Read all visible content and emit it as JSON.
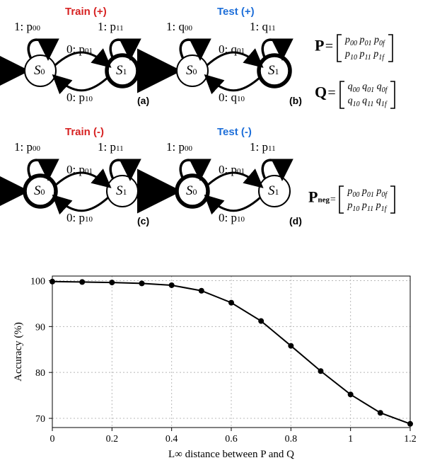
{
  "diagrams": {
    "states": [
      "S",
      "S"
    ],
    "state_subs": [
      "0",
      "1"
    ],
    "a": {
      "header": "Train (+)",
      "header_color": "#d72323",
      "label": "(a)",
      "loop_left": "1: p",
      "loop_left_sub": "00",
      "loop_right": "1: p",
      "loop_right_sub": "11",
      "top": "0: p",
      "top_sub": "01",
      "bot": "0: p",
      "bot_sub": "10",
      "initial": "S0",
      "final": "S1"
    },
    "b": {
      "header": "Test (+)",
      "header_color": "#1e6fd9",
      "label": "(b)",
      "loop_left": "1: q",
      "loop_left_sub": "00",
      "loop_right": "1: q",
      "loop_right_sub": "11",
      "top": "0: q",
      "top_sub": "01",
      "bot": "0: q",
      "bot_sub": "10",
      "initial": "S0",
      "final": "S1"
    },
    "c": {
      "header": "Train (-)",
      "header_color": "#d72323",
      "label": "(c)",
      "loop_left": "1: p",
      "loop_left_sub": "00",
      "loop_right": "1: p",
      "loop_right_sub": "11",
      "top": "0: p",
      "top_sub": "01",
      "bot": "0: p",
      "bot_sub": "10",
      "initial": "S0",
      "final": "S0"
    },
    "d": {
      "header": "Test (-)",
      "header_color": "#1e6fd9",
      "label": "(d)",
      "loop_left": "1: p",
      "loop_left_sub": "00",
      "loop_right": "1: p",
      "loop_right_sub": "11",
      "top": "0: p",
      "top_sub": "01",
      "bot": "0: p",
      "bot_sub": "10",
      "initial": "S0",
      "final": "S0"
    },
    "matrixP": {
      "name": "P",
      "row0": [
        "p",
        "p",
        "p"
      ],
      "row0_subs": [
        "00",
        "01",
        "0f"
      ],
      "row1": [
        "p",
        "p",
        "p"
      ],
      "row1_subs": [
        "10",
        "11",
        "1f"
      ]
    },
    "matrixQ": {
      "name": "Q",
      "row0": [
        "q",
        "q",
        "q"
      ],
      "row0_subs": [
        "00",
        "01",
        "0f"
      ],
      "row1": [
        "q",
        "q",
        "q"
      ],
      "row1_subs": [
        "10",
        "11",
        "1f"
      ]
    },
    "matrixPneg": {
      "name": "P",
      "sub": "neg",
      "row0": [
        "p",
        "p",
        "p"
      ],
      "row0_subs": [
        "00",
        "01",
        "0f"
      ],
      "row1": [
        "p",
        "p",
        "p"
      ],
      "row1_subs": [
        "10",
        "11",
        "1f"
      ]
    }
  },
  "chart": {
    "type": "line",
    "xlabel": "L∞ distance between P and Q",
    "ylabel": "Accuracy (%)",
    "xlim": [
      0,
      1.2
    ],
    "ylim": [
      68,
      101
    ],
    "xticks": [
      0,
      0.2,
      0.4,
      0.6,
      0.8,
      1,
      1.2
    ],
    "yticks": [
      70,
      80,
      90,
      100
    ],
    "x": [
      0,
      0.1,
      0.2,
      0.3,
      0.4,
      0.5,
      0.6,
      0.7,
      0.8,
      0.9,
      1.0,
      1.1,
      1.2
    ],
    "y": [
      99.8,
      99.7,
      99.6,
      99.4,
      99.0,
      97.8,
      95.2,
      91.2,
      85.8,
      80.3,
      75.2,
      71.2,
      68.8
    ],
    "line_color": "#000000",
    "line_width": 2,
    "marker": "circle",
    "marker_size": 4,
    "marker_color": "#000000",
    "grid_color": "#b8b8b8",
    "grid_dash": "2,3",
    "background_color": "#ffffff",
    "axis_fontsize": 15,
    "tick_fontsize": 14,
    "axis_font": "Times New Roman"
  },
  "colors": {
    "black": "#000000",
    "white": "#ffffff"
  }
}
